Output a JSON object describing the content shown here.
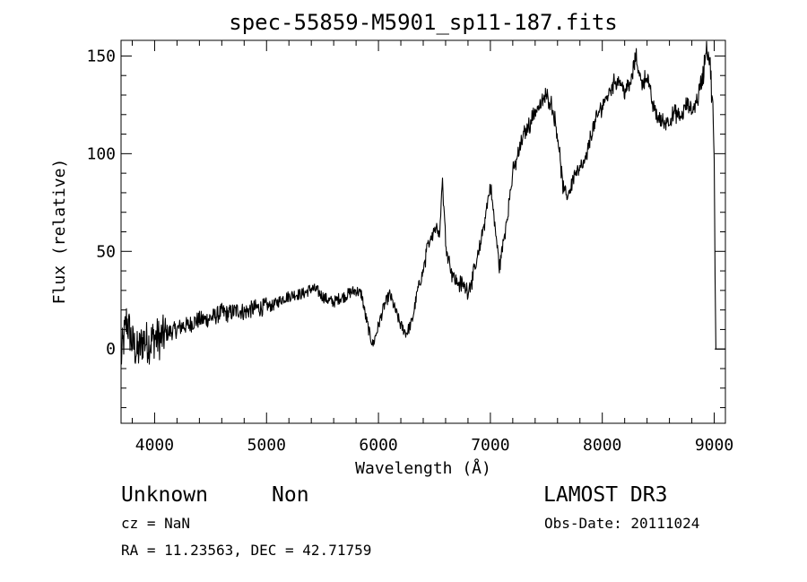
{
  "chart_data": {
    "type": "line",
    "title": "spec-55859-M5901_sp11-187.fits",
    "xlabel": "Wavelength (Å)",
    "ylabel": "Flux (relative)",
    "xlim": [
      3700,
      9100
    ],
    "ylim": [
      -38,
      158
    ],
    "xticks": [
      4000,
      5000,
      6000,
      7000,
      8000,
      9000
    ],
    "yticks": [
      0,
      50,
      100,
      150
    ],
    "series": [
      {
        "name": "spectrum",
        "x": [
          3700,
          3750,
          3800,
          3850,
          3900,
          3950,
          4000,
          4050,
          4100,
          4150,
          4200,
          4250,
          4300,
          4350,
          4400,
          4450,
          4500,
          4550,
          4600,
          4650,
          4700,
          4750,
          4800,
          4850,
          4900,
          4950,
          5000,
          5050,
          5100,
          5150,
          5200,
          5250,
          5300,
          5350,
          5400,
          5450,
          5500,
          5550,
          5600,
          5650,
          5700,
          5750,
          5800,
          5850,
          5880,
          5920,
          5950,
          5990,
          6050,
          6100,
          6150,
          6200,
          6250,
          6300,
          6350,
          6400,
          6450,
          6500,
          6550,
          6570,
          6600,
          6650,
          6700,
          6750,
          6800,
          6850,
          6900,
          6950,
          7000,
          7050,
          7080,
          7120,
          7150,
          7200,
          7250,
          7300,
          7350,
          7400,
          7450,
          7500,
          7550,
          7600,
          7650,
          7680,
          7720,
          7750,
          7800,
          7850,
          7900,
          7950,
          8000,
          8050,
          8100,
          8150,
          8200,
          8250,
          8300,
          8350,
          8400,
          8450,
          8500,
          8550,
          8600,
          8650,
          8700,
          8750,
          8800,
          8850,
          8900,
          8930,
          8960,
          8990,
          9000,
          9010
        ],
        "values": [
          -5,
          15,
          3,
          -2,
          5,
          3,
          6,
          5,
          8,
          9,
          10,
          12,
          12,
          14,
          15,
          15,
          16,
          17,
          19,
          18,
          19,
          20,
          19,
          20,
          21,
          21,
          22,
          22,
          24,
          26,
          27,
          28,
          28,
          29,
          31,
          30,
          27,
          25,
          24,
          26,
          27,
          29,
          30,
          28,
          18,
          8,
          2,
          10,
          22,
          28,
          20,
          12,
          8,
          14,
          30,
          40,
          55,
          62,
          61,
          88,
          55,
          40,
          34,
          33,
          30,
          38,
          50,
          66,
          84,
          58,
          42,
          56,
          68,
          90,
          100,
          110,
          115,
          122,
          125,
          130,
          125,
          110,
          82,
          78,
          83,
          90,
          92,
          96,
          110,
          118,
          125,
          130,
          136,
          138,
          132,
          135,
          150,
          136,
          140,
          125,
          118,
          116,
          117,
          121,
          118,
          125,
          122,
          128,
          140,
          155,
          148,
          120,
          95,
          20
        ]
      }
    ]
  },
  "info": {
    "object_class": "Unknown",
    "subclass": "Non",
    "survey": "LAMOST DR3",
    "cz": "cz = NaN",
    "obs_date": "Obs-Date: 20111024",
    "coords": "RA =  11.23563, DEC =  42.71759"
  }
}
